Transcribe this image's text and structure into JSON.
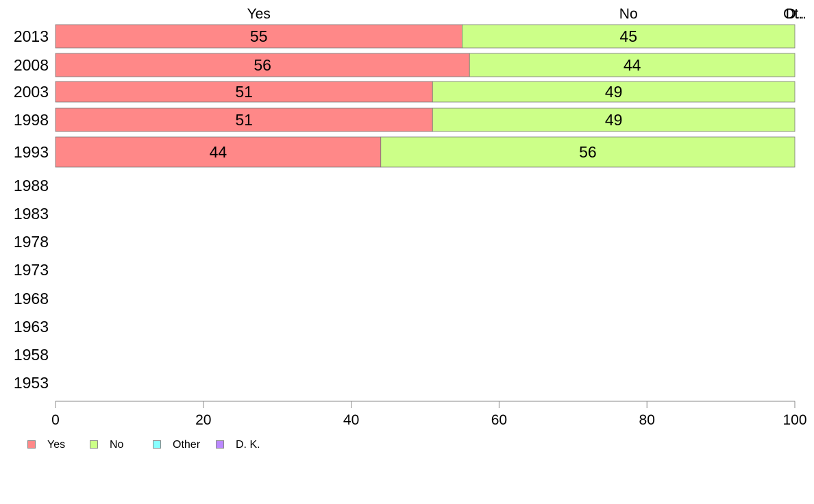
{
  "chart_data": {
    "type": "bar",
    "orientation": "horizontal",
    "stacked": true,
    "categories": [
      "2013",
      "2008",
      "2003",
      "1998",
      "1993",
      "1988",
      "1983",
      "1978",
      "1973",
      "1968",
      "1963",
      "1958",
      "1953"
    ],
    "series": [
      {
        "name": "Yes",
        "color": "#ff8888",
        "values": [
          55,
          56,
          51,
          51,
          44,
          null,
          null,
          null,
          null,
          null,
          null,
          null,
          null
        ]
      },
      {
        "name": "No",
        "color": "#ccff88",
        "values": [
          45,
          44,
          49,
          49,
          56,
          null,
          null,
          null,
          null,
          null,
          null,
          null,
          null
        ]
      },
      {
        "name": "Other",
        "color": "#88ffff",
        "values": [
          0,
          0,
          0,
          0,
          0,
          null,
          null,
          null,
          null,
          null,
          null,
          null,
          null
        ]
      },
      {
        "name": "D. K.",
        "color": "#bb88ff",
        "values": [
          0,
          0,
          0,
          0,
          0,
          null,
          null,
          null,
          null,
          null,
          null,
          null,
          null
        ]
      }
    ],
    "top_labels": [
      "Yes",
      "No",
      "Ot..",
      "D.."
    ],
    "xticks": [
      "0",
      "20",
      "40",
      "60",
      "80",
      "100"
    ],
    "xlim": [
      0,
      100
    ],
    "grid": false,
    "legend_position": "bottom-left"
  },
  "legend": [
    {
      "label": "Yes",
      "color": "#ff8888"
    },
    {
      "label": "No",
      "color": "#ccff88"
    },
    {
      "label": "Other",
      "color": "#88ffff"
    },
    {
      "label": "D. K.",
      "color": "#bb88ff"
    }
  ]
}
